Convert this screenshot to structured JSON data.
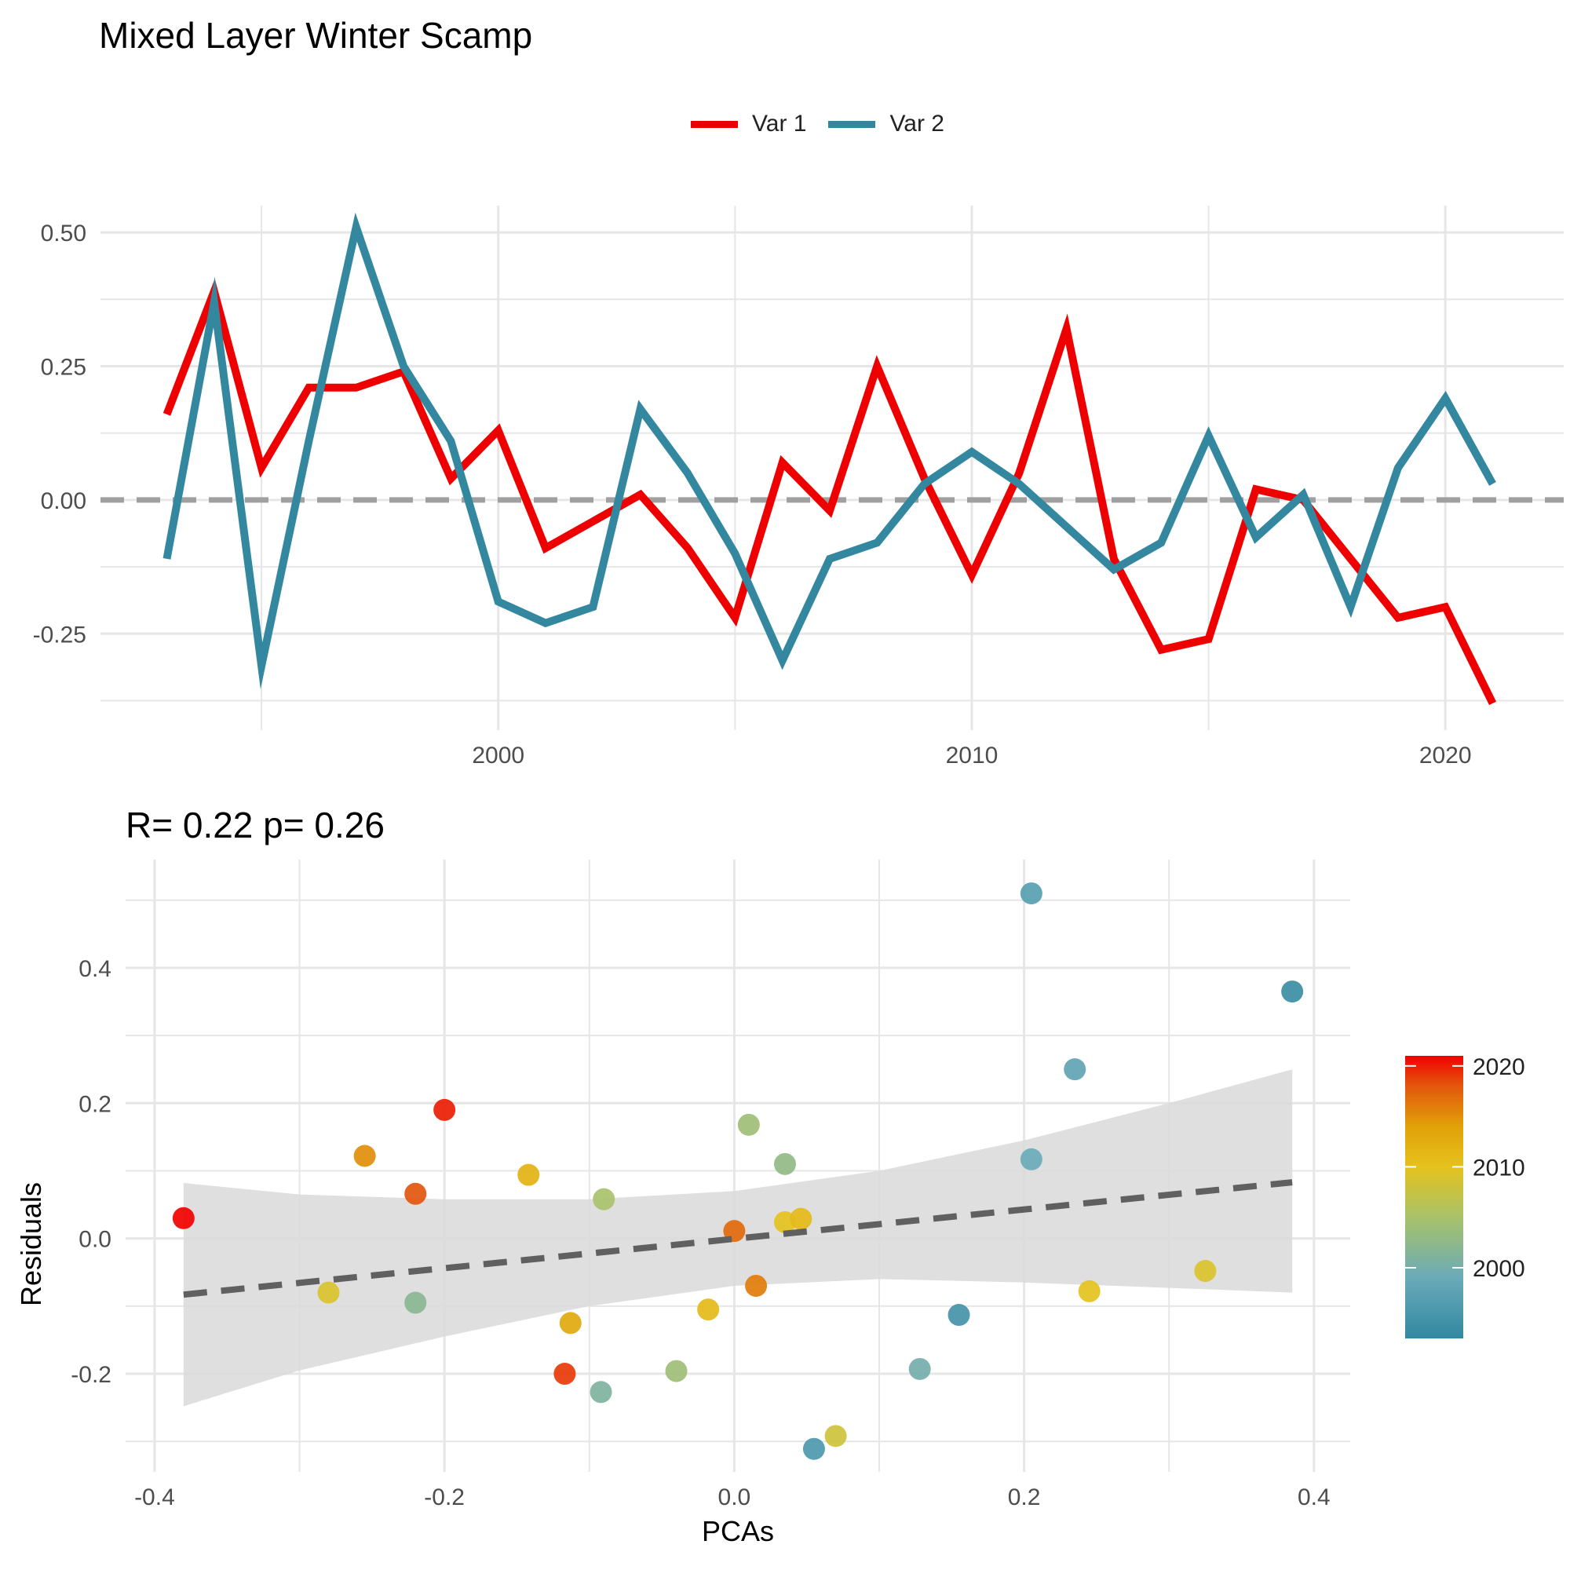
{
  "title": "Mixed Layer Winter Scamp",
  "colors": {
    "var1": "#ee0000",
    "var2": "#3388a0",
    "zero_line": "#a0a0a0",
    "fit_line": "#606060",
    "band": "#d9d9d9",
    "grid": "#e6e6e6"
  },
  "chart_data": [
    {
      "type": "line",
      "title": "",
      "xlabel": "",
      "ylabel": "",
      "x": [
        1993,
        1994,
        1995,
        1996,
        1997,
        1998,
        1999,
        2000,
        2001,
        2002,
        2003,
        2004,
        2005,
        2006,
        2007,
        2008,
        2009,
        2010,
        2011,
        2012,
        2013,
        2014,
        2015,
        2016,
        2017,
        2018,
        2019,
        2020,
        2021
      ],
      "series": [
        {
          "name": "Var 1",
          "values": [
            0.16,
            0.39,
            0.06,
            0.21,
            0.21,
            0.24,
            0.04,
            0.13,
            -0.09,
            -0.04,
            0.01,
            -0.09,
            -0.22,
            0.07,
            -0.02,
            0.25,
            0.04,
            -0.14,
            0.05,
            0.32,
            -0.11,
            -0.28,
            -0.26,
            0.02,
            0.0,
            -0.11,
            -0.22,
            -0.2,
            -0.38
          ]
        },
        {
          "name": "Var 2",
          "values": [
            -0.11,
            0.37,
            -0.31,
            0.11,
            0.51,
            0.25,
            0.11,
            -0.19,
            -0.23,
            -0.2,
            0.17,
            0.05,
            -0.1,
            -0.3,
            -0.11,
            -0.08,
            0.03,
            0.09,
            0.03,
            -0.05,
            -0.13,
            -0.08,
            0.12,
            -0.07,
            0.01,
            -0.2,
            0.06,
            0.19,
            0.03
          ]
        }
      ],
      "xlim": [
        1991.6,
        2022.5
      ],
      "ylim": [
        -0.43,
        0.55
      ],
      "x_ticks": [
        2000,
        2010,
        2020
      ],
      "y_ticks": [
        0.5,
        0.25,
        0.0,
        -0.25
      ],
      "y_tick_labels": [
        "0.50",
        "0.25",
        "0.00",
        "-0.25"
      ],
      "reference_line": 0,
      "legend": {
        "position": "top",
        "entries": [
          "Var 1",
          "Var 2"
        ]
      },
      "grid": true
    },
    {
      "type": "scatter",
      "title": "R= 0.22  p= 0.26",
      "xlabel": "PCAs",
      "ylabel": "Residuals",
      "xlim": [
        -0.42,
        0.425
      ],
      "ylim": [
        -0.345,
        0.56
      ],
      "x_ticks": [
        -0.4,
        -0.2,
        0.0,
        0.2,
        0.4
      ],
      "x_tick_labels": [
        "-0.4",
        "-0.2",
        "0.0",
        "0.2",
        "0.4"
      ],
      "y_ticks": [
        0.4,
        0.2,
        0.0,
        -0.2
      ],
      "y_tick_labels": [
        "0.4",
        "0.2",
        "0.0",
        "-0.2"
      ],
      "points": [
        {
          "x": 0.205,
          "y": 0.51,
          "year": 1997
        },
        {
          "x": 0.385,
          "y": 0.365,
          "year": 1994
        },
        {
          "x": 0.235,
          "y": 0.25,
          "year": 1998
        },
        {
          "x": 0.205,
          "y": 0.117,
          "year": 1999
        },
        {
          "x": 0.035,
          "y": 0.11,
          "year": 2003
        },
        {
          "x": 0.01,
          "y": 0.168,
          "year": 2004
        },
        {
          "x": -0.2,
          "y": 0.19,
          "year": 2020
        },
        {
          "x": -0.255,
          "y": 0.122,
          "year": 2015
        },
        {
          "x": -0.22,
          "y": 0.066,
          "year": 2018
        },
        {
          "x": -0.38,
          "y": 0.03,
          "year": 2021
        },
        {
          "x": -0.142,
          "y": 0.094,
          "year": 2012
        },
        {
          "x": -0.09,
          "y": 0.058,
          "year": 2005
        },
        {
          "x": 0.0,
          "y": 0.011,
          "year": 2017
        },
        {
          "x": 0.035,
          "y": 0.024,
          "year": 2010
        },
        {
          "x": 0.046,
          "y": 0.029,
          "year": 2011
        },
        {
          "x": -0.28,
          "y": -0.08,
          "year": 2009
        },
        {
          "x": -0.22,
          "y": -0.095,
          "year": 2002
        },
        {
          "x": 0.015,
          "y": -0.07,
          "year": 2016
        },
        {
          "x": -0.018,
          "y": -0.105,
          "year": 2011
        },
        {
          "x": 0.245,
          "y": -0.078,
          "year": 2010
        },
        {
          "x": 0.325,
          "y": -0.048,
          "year": 2009
        },
        {
          "x": -0.113,
          "y": -0.125,
          "year": 2013
        },
        {
          "x": 0.155,
          "y": -0.113,
          "year": 1995
        },
        {
          "x": -0.117,
          "y": -0.2,
          "year": 2019
        },
        {
          "x": -0.04,
          "y": -0.196,
          "year": 2004
        },
        {
          "x": -0.092,
          "y": -0.227,
          "year": 2001
        },
        {
          "x": 0.128,
          "y": -0.193,
          "year": 2000
        },
        {
          "x": 0.07,
          "y": -0.292,
          "year": 2008
        },
        {
          "x": 0.055,
          "y": -0.311,
          "year": 1996
        }
      ],
      "fit_line": {
        "x": [
          -0.38,
          0.385
        ],
        "y": [
          -0.083,
          0.083
        ],
        "style": "dashed"
      },
      "confidence_band": {
        "x": [
          -0.38,
          -0.3,
          -0.2,
          -0.1,
          0.0,
          0.1,
          0.2,
          0.3,
          0.385
        ],
        "upper": [
          0.082,
          0.065,
          0.058,
          0.058,
          0.07,
          0.1,
          0.145,
          0.2,
          0.25
        ],
        "lower": [
          -0.248,
          -0.195,
          -0.145,
          -0.1,
          -0.07,
          -0.06,
          -0.065,
          -0.073,
          -0.08
        ]
      },
      "colorbar": {
        "label": "",
        "ticks": [
          2020,
          2010,
          2000
        ],
        "range": [
          1993,
          2021
        ],
        "stops": [
          {
            "year": 1993,
            "color": "#3288a1"
          },
          {
            "year": 1999,
            "color": "#6aaab8"
          },
          {
            "year": 2005,
            "color": "#a8c26a"
          },
          {
            "year": 2010,
            "color": "#e5c21e"
          },
          {
            "year": 2014,
            "color": "#e0a108"
          },
          {
            "year": 2018,
            "color": "#e3560d"
          },
          {
            "year": 2021,
            "color": "#f20000"
          }
        ]
      }
    }
  ]
}
